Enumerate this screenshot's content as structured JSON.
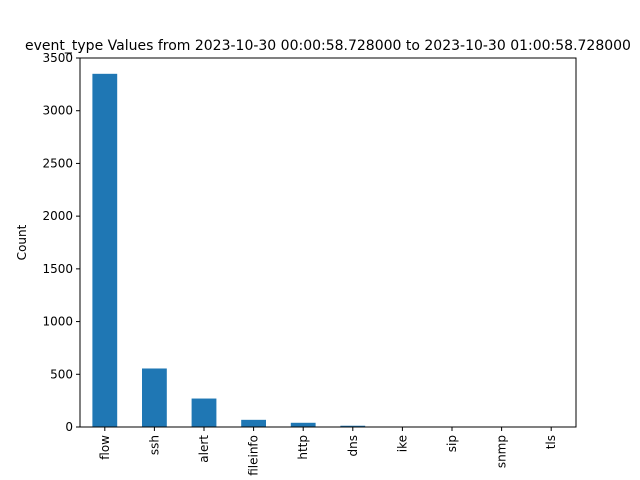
{
  "chart_data": {
    "type": "bar",
    "title": "event_type Values from 2023-10-30 00:00:58.728000 to 2023-10-30 01:00:58.728000",
    "xlabel": "",
    "ylabel": "Count",
    "categories": [
      "flow",
      "ssh",
      "alert",
      "fileinfo",
      "http",
      "dns",
      "ike",
      "sip",
      "snmp",
      "tls"
    ],
    "values": [
      3350,
      555,
      270,
      68,
      40,
      12,
      3,
      2,
      2,
      1
    ],
    "ylim": [
      0,
      3500
    ],
    "yticks": [
      0,
      500,
      1000,
      1500,
      2000,
      2500,
      3000,
      3500
    ],
    "bar_color": "#1f77b4",
    "grid": false,
    "legend": "none"
  }
}
